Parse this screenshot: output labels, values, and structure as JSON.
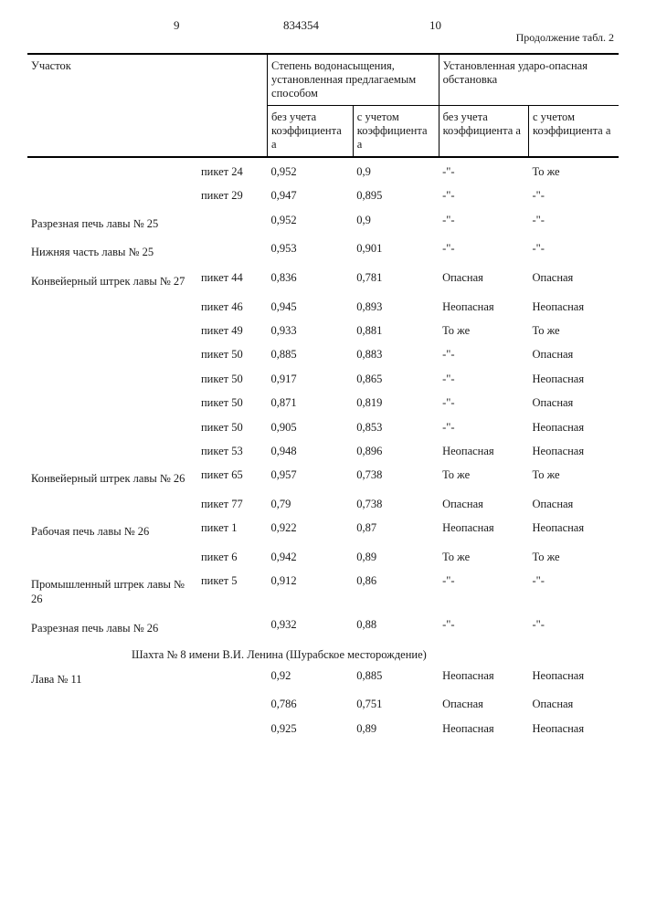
{
  "head": {
    "page_left": "9",
    "doc_num": "834354",
    "page_right": "10",
    "continuation": "Продолжение табл. 2"
  },
  "thead": {
    "uchastok": "Участок",
    "group1": "Степень водонасыщения, установленная предлагаемым способом",
    "group2": "Установленная ударо-опасная обстановка",
    "sub_bez": "без учета коэффициента а",
    "sub_s": "с учетом коэффициента а"
  },
  "rows": [
    {
      "section": "",
      "piket": "пикет 24",
      "v1": "0,952",
      "v2": "0,9",
      "s1": "-\"-",
      "s2": "То же",
      "first": true
    },
    {
      "section": "",
      "piket": "пикет 29",
      "v1": "0,947",
      "v2": "0,895",
      "s1": "-\"-",
      "s2": "-\"-"
    },
    {
      "section": "Разрезная печь лавы № 25",
      "piket": "",
      "v1": "0,952",
      "v2": "0,9",
      "s1": "-\"-",
      "s2": "-\"-"
    },
    {
      "section": "Нижняя часть лавы № 25",
      "piket": "",
      "v1": "0,953",
      "v2": "0,901",
      "s1": "-\"-",
      "s2": "-\"-"
    },
    {
      "section": "Конвейерный штрек лавы № 27",
      "piket": "пикет 44",
      "v1": "0,836",
      "v2": "0,781",
      "s1": "Опасная",
      "s2": "Опасная"
    },
    {
      "section": "",
      "piket": "пикет 46",
      "v1": "0,945",
      "v2": "0,893",
      "s1": "Неопасная",
      "s2": "Неопасная"
    },
    {
      "section": "",
      "piket": "пикет 49",
      "v1": "0,933",
      "v2": "0,881",
      "s1": "То же",
      "s2": "То же"
    },
    {
      "section": "",
      "piket": "пикет 50",
      "v1": "0,885",
      "v2": "0,883",
      "s1": "-\"-",
      "s2": "Опасная"
    },
    {
      "section": "",
      "piket": "пикет 50",
      "v1": "0,917",
      "v2": "0,865",
      "s1": "-\"-",
      "s2": "Неопасная"
    },
    {
      "section": "",
      "piket": "пикет 50",
      "v1": "0,871",
      "v2": "0,819",
      "s1": "-\"-",
      "s2": "Опасная"
    },
    {
      "section": "",
      "piket": "пикет 50",
      "v1": "0,905",
      "v2": "0,853",
      "s1": "-\"-",
      "s2": "Неопасная"
    },
    {
      "section": "",
      "piket": "пикет 53",
      "v1": "0,948",
      "v2": "0,896",
      "s1": "Неопасная",
      "s2": "Неопасная"
    },
    {
      "section": "Конвейерный штрек лавы № 26",
      "piket": "пикет 65",
      "v1": "0,957",
      "v2": "0,738",
      "s1": "То же",
      "s2": "То же"
    },
    {
      "section": "",
      "piket": "пикет 77",
      "v1": "0,79",
      "v2": "0,738",
      "s1": "Опасная",
      "s2": "Опасная"
    },
    {
      "section": "Рабочая печь лавы № 26",
      "piket": "пикет 1",
      "v1": "0,922",
      "v2": "0,87",
      "s1": "Неопасная",
      "s2": "Неопасная"
    },
    {
      "section": "",
      "piket": "пикет 6",
      "v1": "0,942",
      "v2": "0,89",
      "s1": "То же",
      "s2": "То же"
    },
    {
      "section": "Промышленный штрек лавы № 26",
      "piket": "пикет 5",
      "v1": "0,912",
      "v2": "0,86",
      "s1": "-\"-",
      "s2": "-\"-"
    },
    {
      "section": "Разрезная печь лавы № 26",
      "piket": "",
      "v1": "0,932",
      "v2": "0,88",
      "s1": "-\"-",
      "s2": "-\"-"
    }
  ],
  "mine_line": "Шахта № 8 имени В.И. Ленина (Шурабское месторождение)",
  "rows2": [
    {
      "section": "Лава № 11",
      "piket": "",
      "v1": "0,92",
      "v2": "0,885",
      "s1": "Неопасная",
      "s2": "Неопасная"
    },
    {
      "section": "",
      "piket": "",
      "v1": "0,786",
      "v2": "0,751",
      "s1": "Опасная",
      "s2": "Опасная"
    },
    {
      "section": "",
      "piket": "",
      "v1": "0,925",
      "v2": "0,89",
      "s1": "Неопасная",
      "s2": "Неопасная"
    }
  ]
}
